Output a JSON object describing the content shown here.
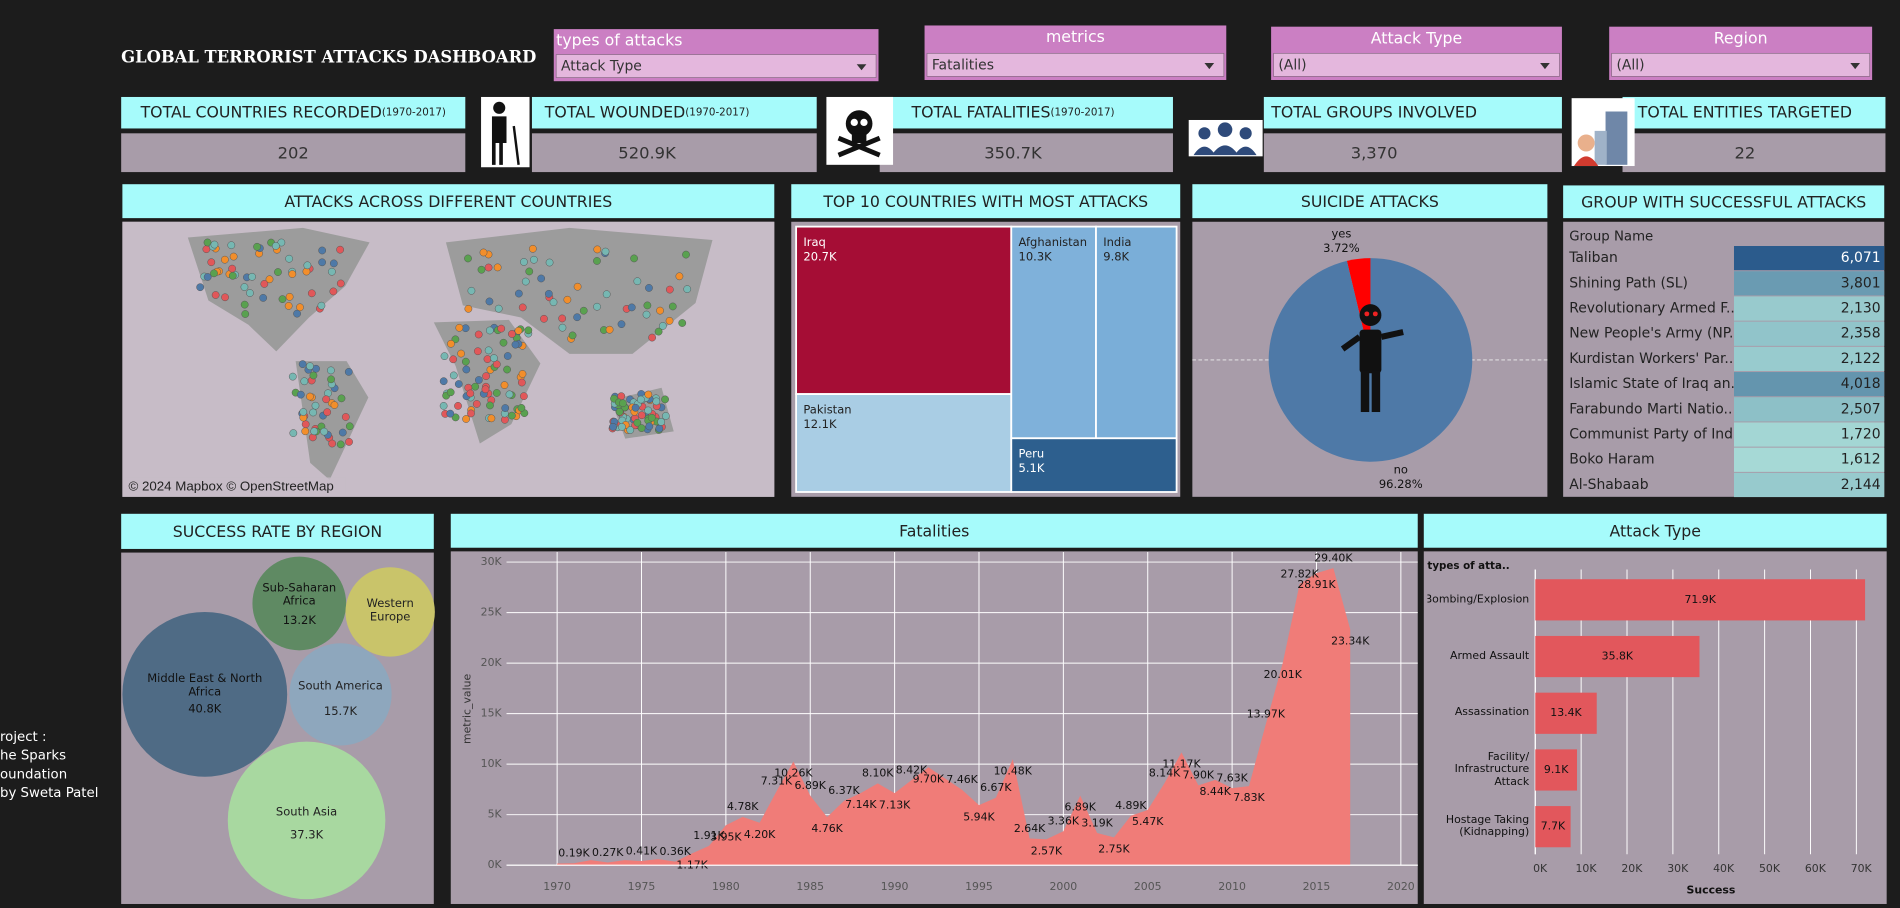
{
  "header": {
    "title": "GLOBAL TERRORIST ATTACKS DASHBOARD"
  },
  "filters": [
    {
      "label": "types of attacks",
      "value": "Attack Type"
    },
    {
      "label": "metrics",
      "value": "Fatalities"
    },
    {
      "label": "Attack Type",
      "value": "(All)"
    },
    {
      "label": "Region",
      "value": "(All)"
    }
  ],
  "kpis": [
    {
      "title": "TOTAL COUNTRIES RECORDED",
      "period": "(1970-2017)",
      "value": "202"
    },
    {
      "title": "TOTAL WOUNDED",
      "period": "(1970-2017)",
      "value": "520.9K"
    },
    {
      "title": "TOTAL FATALITIES",
      "period": "(1970-2017)",
      "value": "350.7K"
    },
    {
      "title": "TOTAL GROUPS INVOLVED",
      "value": "3,370"
    },
    {
      "title": "TOTAL ENTITIES TARGETED",
      "value": "22"
    }
  ],
  "map": {
    "title": "ATTACKS ACROSS DIFFERENT COUNTRIES",
    "attribution": "© 2024 Mapbox © OpenStreetMap"
  },
  "chart_data": [
    {
      "type": "treemap",
      "title": "TOP 10 COUNTRIES WITH MOST ATTACKS",
      "categories": [
        "Iraq",
        "Pakistan",
        "Afghanistan",
        "India",
        "Peru"
      ],
      "values": [
        20700,
        12100,
        10300,
        9800,
        5100
      ],
      "value_labels": [
        "20.7K",
        "12.1K",
        "10.3K",
        "9.8K",
        "5.1K"
      ],
      "colors": [
        "#a50d35",
        "#a9cde4",
        "#7fb1da",
        "#7aaed8",
        "#2d5f8e"
      ]
    },
    {
      "type": "pie",
      "title": "SUICIDE ATTACKS",
      "categories": [
        "yes",
        "no"
      ],
      "values": [
        3.72,
        96.28
      ],
      "value_labels": [
        "3.72%",
        "96.28%"
      ],
      "colors": [
        "#ff0000",
        "#4e79a7"
      ]
    },
    {
      "type": "table",
      "title": "GROUP WITH SUCCESSFUL ATTACKS",
      "column": "Group Name",
      "categories": [
        "Taliban",
        "Shining Path (SL)",
        "Revolutionary Armed F..",
        "New People's Army (NP..",
        "Kurdistan Workers' Par..",
        "Islamic State of Iraq an..",
        "Farabundo Marti Natio..",
        "Communist Party of Ind..",
        "Boko Haram",
        "Al-Shabaab"
      ],
      "values": [
        6071,
        3801,
        2130,
        2358,
        2122,
        4018,
        2507,
        1720,
        1612,
        2144
      ],
      "value_labels": [
        "6,071",
        "3,801",
        "2,130",
        "2,358",
        "2,122",
        "4,018",
        "2,507",
        "1,720",
        "1,612",
        "2,144"
      ],
      "colors": [
        "#a6d9d6",
        "#2b5b8c"
      ]
    },
    {
      "type": "bubble",
      "title": "SUCCESS RATE BY REGION",
      "categories": [
        "Middle East & North Africa",
        "South Asia",
        "South America",
        "Sub-Saharan Africa",
        "Western Europe"
      ],
      "values": [
        40800,
        37300,
        15700,
        13200,
        12000
      ],
      "value_labels": [
        "40.8K",
        "37.3K",
        "15.7K",
        "13.2K",
        null
      ],
      "colors": [
        "#4f6b85",
        "#a8d8a0",
        "#8ea7bd",
        "#5f8a63",
        "#c9c46a"
      ]
    },
    {
      "type": "area",
      "title": "Fatalities",
      "y_label": "metric_value",
      "color": "#f07c78",
      "grid": true,
      "x": [
        1970,
        1971,
        1972,
        1973,
        1974,
        1975,
        1976,
        1977,
        1978,
        1979,
        1980,
        1981,
        1982,
        1983,
        1984,
        1985,
        1986,
        1987,
        1988,
        1989,
        1990,
        1991,
        1992,
        1994,
        1995,
        1996,
        1997,
        1998,
        1999,
        2000,
        2001,
        2002,
        2003,
        2004,
        2005,
        2006,
        2007,
        2008,
        2009,
        2010,
        2011,
        2012,
        2013,
        2014,
        2015,
        2016,
        2017
      ],
      "values": [
        170,
        190,
        500,
        270,
        500,
        410,
        600,
        360,
        1170,
        1910,
        3950,
        4780,
        4200,
        7310,
        10260,
        6890,
        4760,
        6370,
        7140,
        8100,
        7130,
        8420,
        9700,
        7460,
        5940,
        6670,
        10480,
        2640,
        2570,
        3360,
        6890,
        3190,
        2750,
        4890,
        5470,
        8140,
        11170,
        7900,
        8440,
        7630,
        7830,
        13970,
        20010,
        27820,
        28910,
        29400,
        23340
      ],
      "value_labels": [
        null,
        "0.19K",
        null,
        "0.27K",
        null,
        "0.41K",
        null,
        "0.36K",
        "1.17K",
        "1.91K",
        "3.95K",
        "4.78K",
        "4.20K",
        "7.31K",
        "10.26K",
        "6.89K",
        "4.76K",
        "6.37K",
        "7.14K",
        "8.10K",
        "7.13K",
        "8.42K",
        "9.70K",
        "7.46K",
        "5.94K",
        "6.67K",
        "10.48K",
        "2.64K",
        "2.57K",
        "3.36K",
        "6.89K",
        "3.19K",
        "2.75K",
        "4.89K",
        "5.47K",
        "8.14K",
        "11.17K",
        "7.90K",
        "8.44K",
        "7.63K",
        "7.83K",
        "13.97K",
        "20.01K",
        "27.82K",
        "28.91K",
        "29.40K",
        "23.34K"
      ],
      "xlim": [
        1967,
        2021
      ],
      "xticks": [
        1970,
        1975,
        1980,
        1985,
        1990,
        1995,
        2000,
        2005,
        2010,
        2015,
        2020
      ],
      "ylim": [
        0,
        31000
      ],
      "yticks": [
        {
          "value": 0,
          "label": "0K"
        },
        {
          "value": 5000,
          "label": "5K"
        },
        {
          "value": 10000,
          "label": "10K"
        },
        {
          "value": 15000,
          "label": "15K"
        },
        {
          "value": 20000,
          "label": "20K"
        },
        {
          "value": 25000,
          "label": "25K"
        },
        {
          "value": 30000,
          "label": "30K"
        }
      ]
    },
    {
      "type": "hbar",
      "title": "Attack Type",
      "y_label": "types of atta..",
      "x_label": "Success",
      "color": "#e2575c",
      "grid": true,
      "categories": [
        "Bombing/Explosion",
        "Armed Assault",
        "Assassination",
        "Facility/ Infrastructure Attack",
        "Hostage Taking (Kidnapping)"
      ],
      "values": [
        71900,
        35800,
        13400,
        9100,
        7700
      ],
      "value_labels": [
        "71.9K",
        "35.8K",
        "13.4K",
        "9.1K",
        "7.7K"
      ],
      "xlim": [
        0,
        73700
      ],
      "xticks": [
        {
          "value": 0,
          "label": "0K"
        },
        {
          "value": 10000,
          "label": "10K"
        },
        {
          "value": 20000,
          "label": "20K"
        },
        {
          "value": 30000,
          "label": "30K"
        },
        {
          "value": 40000,
          "label": "40K"
        },
        {
          "value": 50000,
          "label": "50K"
        },
        {
          "value": 60000,
          "label": "60K"
        },
        {
          "value": 70000,
          "label": "70K"
        }
      ]
    }
  ],
  "footer": [
    "roject :",
    "he Sparks",
    "oundation",
    "by Sweta Patel"
  ]
}
